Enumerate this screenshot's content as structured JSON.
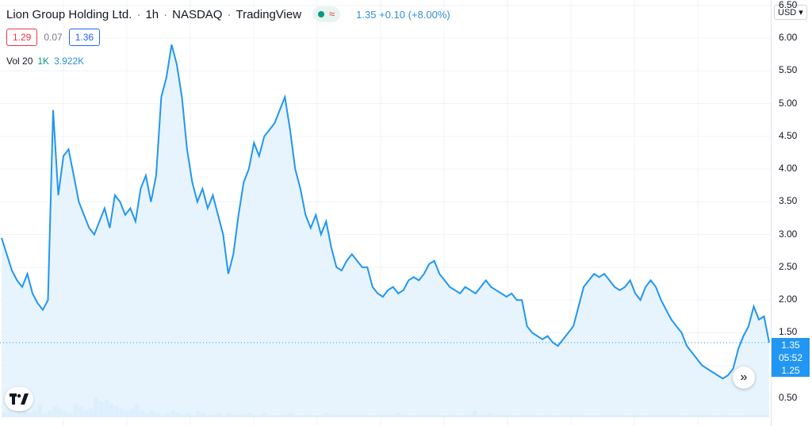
{
  "header": {
    "symbol": "Lion Group Holding Ltd.",
    "interval": "1h",
    "exchange": "NASDAQ",
    "source": "TradingView",
    "last_price": "1.35",
    "change": "+0.10",
    "change_pct": "(+8.00%)"
  },
  "ohlc": {
    "bid": "1.29",
    "spread": "0.07",
    "ask": "1.36"
  },
  "volume": {
    "label": "Vol 20",
    "period": "1K",
    "value": "3.922K"
  },
  "yaxis": {
    "currency": "USD",
    "ticks": [
      "6.50",
      "6.00",
      "5.50",
      "5.00",
      "4.50",
      "4.00",
      "3.50",
      "3.00",
      "2.50",
      "2.00",
      "1.50",
      "1.00",
      "0.50"
    ],
    "last_label": "1.35",
    "countdown": "05:52",
    "low_label": "1.25"
  },
  "colors": {
    "line": "#2196f3",
    "fill": "#e3f2fd",
    "volume": "#90caf9"
  },
  "chart_data": {
    "type": "area",
    "title": "Lion Group Holding Ltd. · 1h · NASDAQ",
    "ylim": [
      0.3,
      6.6
    ],
    "grid": true,
    "values": [
      2.95,
      2.7,
      2.45,
      2.3,
      2.2,
      2.4,
      2.1,
      1.95,
      1.85,
      2.0,
      4.9,
      3.6,
      4.2,
      4.3,
      3.9,
      3.5,
      3.3,
      3.1,
      3.0,
      3.2,
      3.4,
      3.1,
      3.6,
      3.5,
      3.3,
      3.4,
      3.2,
      3.7,
      3.9,
      3.5,
      3.9,
      5.1,
      5.4,
      5.9,
      5.6,
      5.1,
      4.3,
      3.8,
      3.5,
      3.7,
      3.4,
      3.6,
      3.3,
      3.0,
      2.4,
      2.7,
      3.3,
      3.8,
      4.0,
      4.4,
      4.2,
      4.5,
      4.6,
      4.7,
      4.9,
      5.1,
      4.6,
      4.0,
      3.7,
      3.3,
      3.1,
      3.3,
      3.0,
      3.2,
      2.8,
      2.5,
      2.45,
      2.6,
      2.7,
      2.6,
      2.5,
      2.5,
      2.2,
      2.1,
      2.05,
      2.15,
      2.2,
      2.1,
      2.15,
      2.3,
      2.35,
      2.3,
      2.4,
      2.55,
      2.6,
      2.4,
      2.3,
      2.2,
      2.15,
      2.1,
      2.2,
      2.15,
      2.1,
      2.2,
      2.3,
      2.2,
      2.15,
      2.1,
      2.05,
      2.1,
      2.0,
      2.0,
      1.6,
      1.5,
      1.45,
      1.4,
      1.45,
      1.35,
      1.3,
      1.4,
      1.5,
      1.6,
      1.9,
      2.2,
      2.3,
      2.4,
      2.35,
      2.4,
      2.3,
      2.2,
      2.15,
      2.2,
      2.3,
      2.1,
      2.0,
      2.2,
      2.3,
      2.2,
      2.0,
      1.85,
      1.7,
      1.6,
      1.5,
      1.3,
      1.2,
      1.1,
      1.0,
      0.95,
      0.9,
      0.85,
      0.8,
      0.85,
      0.95,
      1.25,
      1.45,
      1.6,
      1.9,
      1.7,
      1.75,
      1.35
    ],
    "volume": [
      0.2,
      0.3,
      0.15,
      0.25,
      0.4,
      0.2,
      0.3,
      0.6,
      0.2,
      0.3,
      0.5,
      0.4,
      0.3,
      0.2,
      0.6,
      0.5,
      0.3,
      0.4,
      0.9,
      0.7,
      0.8,
      0.6,
      0.5,
      0.4,
      0.3,
      0.4,
      0.6,
      0.3,
      0.2,
      0.3,
      0.2,
      0.1,
      0.2,
      0.3,
      0.2,
      0.1,
      0.2,
      0.1,
      0.3,
      0.2,
      0.1,
      0.1,
      0.2,
      0.1,
      0.2,
      0.1,
      0.1,
      0.1,
      0.2,
      0.1,
      0.1,
      0.2,
      0.1,
      0.1,
      0.1,
      0.1,
      0.2,
      0.1,
      0.1,
      0.1,
      0.1,
      0.1,
      0.1,
      0.2,
      0.1,
      0.1,
      0.1,
      0.1,
      0.1,
      0.1,
      0.1,
      0.1,
      0.1,
      0.1,
      0.1,
      0.1,
      0.1,
      0.2,
      0.1,
      0.1,
      0.1,
      0.1,
      0.1,
      0.1,
      0.1,
      0.1,
      0.1,
      0.1,
      0.1,
      0.1,
      0.1,
      0.1,
      0.3,
      0.1,
      0.1,
      0.2,
      0.1,
      0.1,
      0.1,
      0.1,
      0.1,
      0.1,
      0.1,
      0.1,
      0.1,
      0.1,
      0.1,
      0.1,
      0.1,
      0.1,
      0.1,
      0.1,
      0.1,
      0.1,
      0.1,
      0.1,
      0.1,
      0.1,
      0.1,
      0.1,
      0.1,
      0.1,
      0.1,
      0.1,
      0.1,
      0.1,
      0.1,
      0.1,
      0.1,
      0.1,
      0.1,
      0.1,
      0.1,
      0.1,
      0.1,
      0.1,
      0.1,
      0.1,
      0.1,
      0.1,
      0.1,
      0.1,
      0.1,
      0.1,
      0.1,
      0.1,
      0.1,
      0.1,
      0.1,
      0.1
    ]
  }
}
